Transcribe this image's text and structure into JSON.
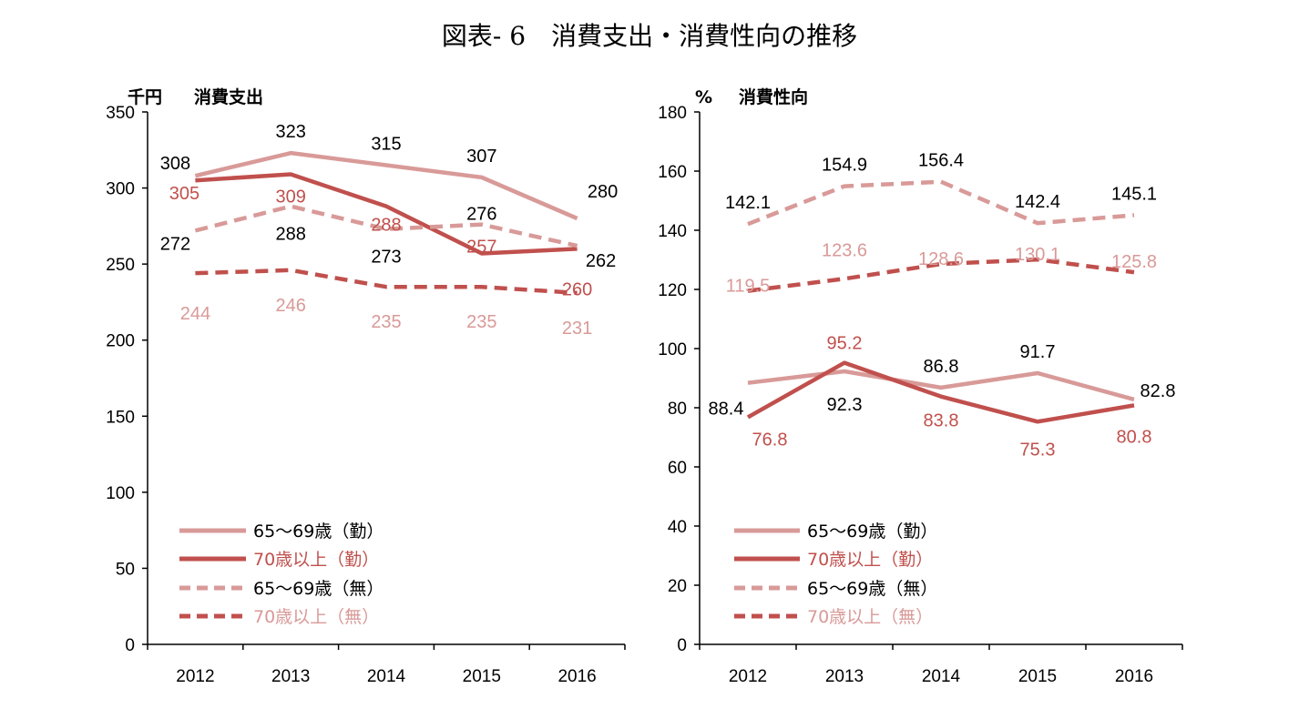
{
  "title": "図表- 6　消費支出・消費性向の推移",
  "colors": {
    "light": "#d89a98",
    "dark": "#c0504d",
    "label_black": "#000000",
    "axis": "#000000"
  },
  "chart_data": [
    {
      "type": "line",
      "unit": "千円",
      "ylabel": "消費支出",
      "x": [
        "2012",
        "2013",
        "2014",
        "2015",
        "2016"
      ],
      "ylim": [
        0,
        350
      ],
      "yticks": [
        0,
        50,
        100,
        150,
        200,
        250,
        300,
        350
      ],
      "series": [
        {
          "name": "65～69歳（勤）",
          "values": [
            308,
            323,
            315,
            307,
            280
          ],
          "style": "solid",
          "color": "light",
          "label_color": "label_black"
        },
        {
          "name": "70歳以上（勤）",
          "values": [
            305,
            309,
            288,
            257,
            260
          ],
          "style": "solid",
          "color": "dark",
          "label_color": "dark"
        },
        {
          "name": "65～69歳（無）",
          "values": [
            272,
            288,
            273,
            276,
            262
          ],
          "style": "dashed",
          "color": "light",
          "label_color": "label_black"
        },
        {
          "name": "70歳以上（無）",
          "values": [
            244,
            246,
            235,
            235,
            231
          ],
          "style": "dashed",
          "color": "dark",
          "label_color": "light"
        }
      ]
    },
    {
      "type": "line",
      "unit": "%",
      "ylabel": "消費性向",
      "x": [
        "2012",
        "2013",
        "2014",
        "2015",
        "2016"
      ],
      "ylim": [
        0,
        180
      ],
      "yticks": [
        0,
        20,
        40,
        60,
        80,
        100,
        120,
        140,
        160,
        180
      ],
      "series": [
        {
          "name": "65～69歳（勤）",
          "values": [
            88.4,
            92.3,
            86.8,
            91.7,
            82.8
          ],
          "style": "solid",
          "color": "light",
          "label_color": "label_black"
        },
        {
          "name": "70歳以上（勤）",
          "values": [
            76.8,
            95.2,
            83.8,
            75.3,
            80.8
          ],
          "style": "solid",
          "color": "dark",
          "label_color": "dark"
        },
        {
          "name": "65～69歳（無）",
          "values": [
            142.1,
            154.9,
            156.4,
            142.4,
            145.1
          ],
          "style": "dashed",
          "color": "light",
          "label_color": "label_black"
        },
        {
          "name": "70歳以上（無）",
          "values": [
            119.5,
            123.6,
            128.6,
            130.1,
            125.8
          ],
          "style": "dashed",
          "color": "dark",
          "label_color": "light"
        }
      ]
    }
  ]
}
